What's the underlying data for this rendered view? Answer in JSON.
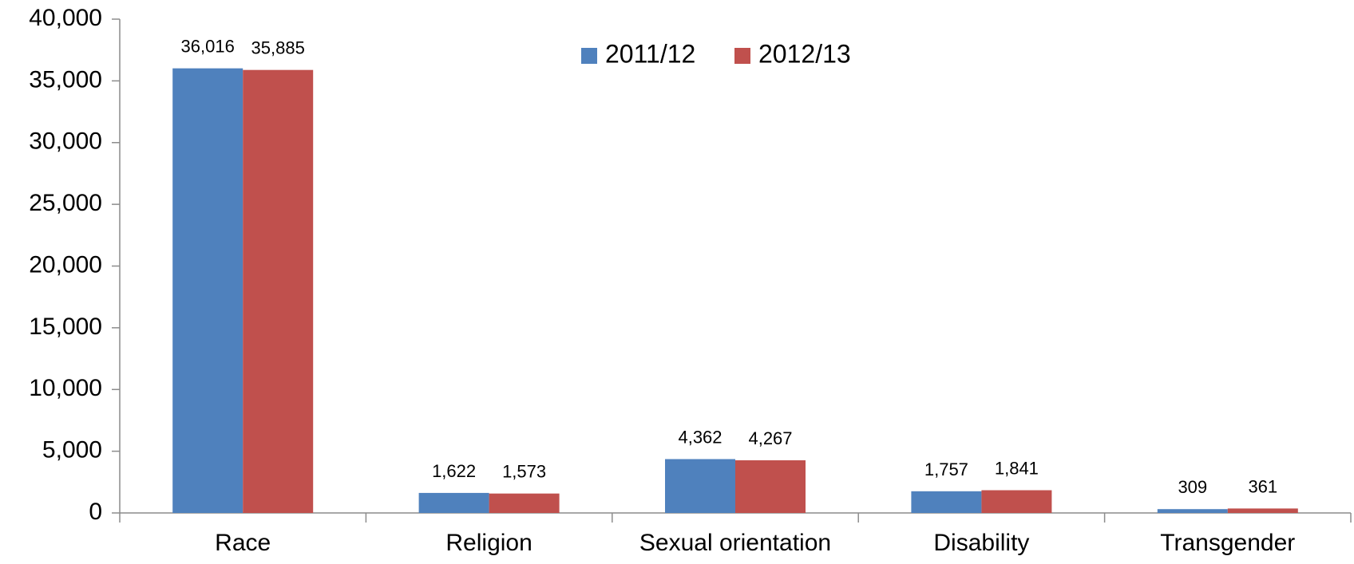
{
  "chart_data": {
    "type": "bar",
    "categories": [
      "Race",
      "Religion",
      "Sexual orientation",
      "Disability",
      "Transgender"
    ],
    "series": [
      {
        "name": "2011/12",
        "color": "#4F81BD",
        "values": [
          36016,
          1622,
          4362,
          1757,
          309
        ],
        "labels": [
          "36,016",
          "1,622",
          "4,362",
          "1,757",
          "309"
        ]
      },
      {
        "name": "2012/13",
        "color": "#C0504D",
        "values": [
          35885,
          1573,
          4267,
          1841,
          361
        ],
        "labels": [
          "35,885",
          "1,573",
          "4,267",
          "1,841",
          "361"
        ]
      }
    ],
    "ylim": [
      0,
      40000
    ],
    "yticks": [
      0,
      5000,
      10000,
      15000,
      20000,
      25000,
      30000,
      35000,
      40000
    ],
    "ytick_labels": [
      "0",
      "5,000",
      "10,000",
      "15,000",
      "20,000",
      "25,000",
      "30,000",
      "35,000",
      "40,000"
    ],
    "title": "",
    "xlabel": "",
    "ylabel": "",
    "grid": false,
    "legend": "top-center"
  }
}
